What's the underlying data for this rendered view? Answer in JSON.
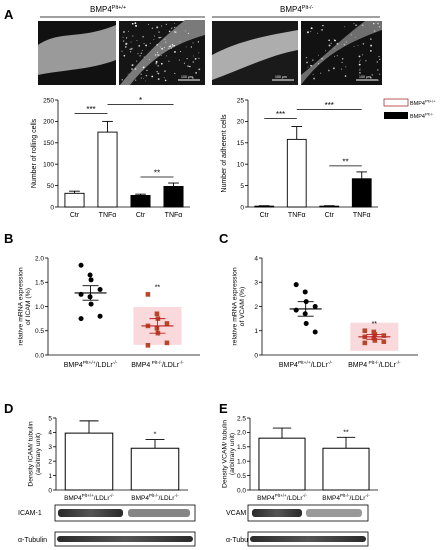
{
  "colors": {
    "wt": "#ffffff",
    "ko": "#000000",
    "highlight": "#f6c9cc",
    "ko_point": "#b7472a",
    "bar_edge": "#000000"
  },
  "panel_labels": [
    "A",
    "B",
    "C",
    "D",
    "E"
  ],
  "header": {
    "wt": "BMP4",
    "wt_sup": "Plt+/+",
    "ko": "BMP4",
    "ko_sup": "Plt-/-"
  },
  "microscopy": {
    "scale_bar": "100 µm"
  },
  "legend": [
    {
      "text": "BMP4",
      "sup": "Plt+/+"
    },
    {
      "text": "BMP4",
      "sup": "Plt-/-"
    }
  ],
  "chart_data": [
    {
      "id": "A1",
      "type": "bar",
      "ylabel": "Number of rolling cells",
      "ylim": [
        0,
        250
      ],
      "yticks": [
        0,
        50,
        100,
        150,
        200,
        250
      ],
      "categories": [
        "Ctr",
        "TNFα",
        "Ctr",
        "TNFα"
      ],
      "groups": [
        "Plt+/+",
        "Plt+/+",
        "Plt-/-",
        "Plt-/-"
      ],
      "values": [
        32,
        175,
        27,
        48
      ],
      "errors": [
        5,
        25,
        3,
        8
      ],
      "significance": [
        {
          "from": 0,
          "to": 1,
          "label": "***"
        },
        {
          "from": 1,
          "to": 3,
          "label": "*"
        },
        {
          "from": 2,
          "to": 3,
          "label": "**"
        }
      ]
    },
    {
      "id": "A2",
      "type": "bar",
      "ylabel": "Number of adherent cells",
      "ylim": [
        0,
        25
      ],
      "yticks": [
        0,
        5,
        10,
        15,
        20,
        25
      ],
      "categories": [
        "Ctr",
        "TNFα",
        "Ctr",
        "TNFα"
      ],
      "groups": [
        "Plt+/+",
        "Plt+/+",
        "Plt-/-",
        "Plt-/-"
      ],
      "values": [
        0.2,
        15.8,
        0.2,
        6.6
      ],
      "errors": [
        0.1,
        3,
        0.1,
        1.6
      ],
      "significance": [
        {
          "from": 0,
          "to": 1,
          "label": "***"
        },
        {
          "from": 1,
          "to": 3,
          "label": "***"
        },
        {
          "from": 2,
          "to": 3,
          "label": "**"
        }
      ]
    },
    {
      "id": "B",
      "type": "scatter",
      "ylabel": "relative mRNA expression\nof ICAM (%)",
      "ylim": [
        0,
        2.0
      ],
      "yticks": [
        0.0,
        0.5,
        1.0,
        1.5,
        2.0
      ],
      "categories": [
        {
          "a": "BMP4",
          "sup1": "Plt+/+",
          "b": "/LDLr",
          "sup2": "-/-"
        },
        {
          "a": "BMP4",
          "sup1": " Plt-/-",
          "b": "/LDLr",
          "sup2": "-/-"
        }
      ],
      "series": [
        {
          "values": [
            1.85,
            1.65,
            1.55,
            1.35,
            1.25,
            1.2,
            1.05,
            0.8,
            0.75
          ]
        },
        {
          "values": [
            1.25,
            0.85,
            0.75,
            0.65,
            0.6,
            0.55,
            0.45,
            0.25,
            0.2
          ]
        }
      ],
      "means": [
        1.28,
        0.6
      ],
      "sem": [
        0.15,
        0.15
      ],
      "significance": [
        {
          "series": 1,
          "label": "**"
        }
      ]
    },
    {
      "id": "C",
      "type": "scatter",
      "ylabel": "relative mRNA expression\nof VCAM (%)",
      "ylim": [
        0,
        4
      ],
      "yticks": [
        0,
        1,
        2,
        3,
        4
      ],
      "categories": [
        {
          "a": "BMP4",
          "sup1": "Plt+/+",
          "b": "/LDLr",
          "sup2": "-/-"
        },
        {
          "a": "BMP4",
          "sup1": " Plt-/-",
          "b": "/LDLr",
          "sup2": "-/-"
        }
      ],
      "series": [
        {
          "values": [
            2.9,
            2.6,
            2.2,
            2.0,
            1.85,
            1.7,
            1.3,
            0.95
          ]
        },
        {
          "values": [
            1.0,
            0.95,
            0.85,
            0.8,
            0.75,
            0.7,
            0.6,
            0.55,
            0.5
          ]
        }
      ],
      "means": [
        1.9,
        0.75
      ],
      "sem": [
        0.3,
        0.1
      ],
      "significance": [
        {
          "series": 1,
          "label": "**"
        }
      ]
    },
    {
      "id": "D",
      "type": "bar",
      "ylabel": "Density ICAM/ tubulin\n(arbitrary unit)",
      "ylim": [
        0,
        5
      ],
      "yticks": [
        0,
        1,
        2,
        3,
        4,
        5
      ],
      "categories": [
        {
          "a": "BMP4",
          "sup1": "Plt+/+",
          "b": "/LDLr",
          "sup2": "-/-"
        },
        {
          "a": "BMP4",
          "sup1": "Plt-/-",
          "b": "/LDLr",
          "sup2": "-/-"
        }
      ],
      "values": [
        3.95,
        2.9
      ],
      "errors": [
        0.85,
        0.6
      ],
      "significance": [
        {
          "bar": 1,
          "label": "*"
        }
      ]
    },
    {
      "id": "E",
      "type": "bar",
      "ylabel": "Density VCAM/ tubulin\n(arbitrary unit)",
      "ylim": [
        0,
        2.5
      ],
      "yticks": [
        0.0,
        0.5,
        1.0,
        1.5,
        2.0,
        2.5
      ],
      "categories": [
        {
          "a": "BMP4",
          "sup1": "Plt+/+",
          "b": "/LDLr",
          "sup2": "-/-"
        },
        {
          "a": "BMP4",
          "sup1": "Plt-/-",
          "b": "/LDLr",
          "sup2": "-/-"
        }
      ],
      "values": [
        1.8,
        1.45
      ],
      "errors": [
        0.35,
        0.38
      ],
      "significance": [
        {
          "bar": 1,
          "label": "**"
        }
      ]
    }
  ],
  "blots": {
    "D": [
      {
        "label": "ICAM-1"
      },
      {
        "label": "α-Tubulin"
      }
    ],
    "E": [
      {
        "label": "VCAM"
      },
      {
        "label": "α-Tubulin"
      }
    ]
  }
}
